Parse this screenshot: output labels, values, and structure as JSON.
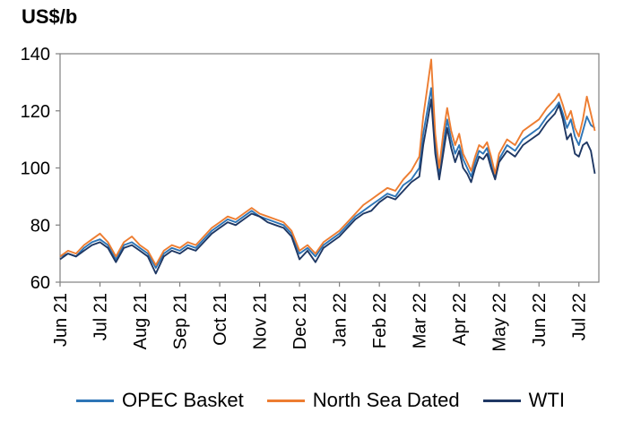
{
  "title": "US$/b",
  "axis": {
    "border_color": "#808080",
    "tick_color": "#808080",
    "label_color": "#000000"
  },
  "chart_data": {
    "type": "line",
    "title": "US$/b",
    "xlabel": "",
    "ylabel": "US$/b",
    "ylim": [
      60,
      140
    ],
    "yticks": [
      60,
      80,
      100,
      120,
      140
    ],
    "xlim": [
      0,
      13.5
    ],
    "x_unit": "months since Jun 2021",
    "xtick_positions": [
      0,
      1,
      2,
      3,
      4,
      5,
      6,
      7,
      8,
      9,
      10,
      11,
      12,
      13
    ],
    "xtick_labels": [
      "Jun 21",
      "Jul 21",
      "Aug 21",
      "Sep 21",
      "Oct 21",
      "Nov 21",
      "Dec 21",
      "Jan 22",
      "Feb 22",
      "Mar 22",
      "Apr 22",
      "May 22",
      "Jun 22",
      "Jul 22"
    ],
    "grid": false,
    "legend_position": "bottom",
    "x": [
      0.0,
      0.2,
      0.4,
      0.6,
      0.8,
      1.0,
      1.2,
      1.4,
      1.6,
      1.8,
      2.0,
      2.2,
      2.4,
      2.6,
      2.8,
      3.0,
      3.2,
      3.4,
      3.6,
      3.8,
      4.0,
      4.2,
      4.4,
      4.6,
      4.8,
      5.0,
      5.2,
      5.4,
      5.6,
      5.8,
      6.0,
      6.2,
      6.4,
      6.6,
      6.8,
      7.0,
      7.2,
      7.4,
      7.6,
      7.8,
      8.0,
      8.2,
      8.4,
      8.6,
      8.8,
      9.0,
      9.1,
      9.2,
      9.3,
      9.4,
      9.5,
      9.6,
      9.7,
      9.8,
      9.9,
      10.0,
      10.1,
      10.2,
      10.3,
      10.4,
      10.5,
      10.6,
      10.7,
      10.8,
      10.9,
      11.0,
      11.2,
      11.4,
      11.6,
      11.8,
      12.0,
      12.2,
      12.4,
      12.5,
      12.6,
      12.7,
      12.8,
      12.9,
      13.0,
      13.1,
      13.2,
      13.3,
      13.4
    ],
    "series": [
      {
        "name": "OPEC Basket",
        "color": "#2E75B6",
        "values": [
          69,
          70,
          69,
          72,
          74,
          75,
          73,
          68,
          73,
          74,
          72,
          70,
          65,
          70,
          72,
          71,
          73,
          72,
          75,
          78,
          80,
          82,
          81,
          83,
          85,
          83,
          82,
          81,
          80,
          77,
          70,
          72,
          69,
          73,
          75,
          77,
          80,
          83,
          85,
          87,
          89,
          91,
          90,
          94,
          96,
          100,
          112,
          120,
          128,
          108,
          98,
          108,
          117,
          110,
          105,
          108,
          103,
          100,
          97,
          102,
          106,
          105,
          107,
          102,
          97,
          103,
          108,
          106,
          110,
          112,
          114,
          118,
          121,
          123,
          119,
          114,
          117,
          111,
          108,
          113,
          118,
          115,
          114
        ]
      },
      {
        "name": "North Sea Dated",
        "color": "#ED7D31",
        "values": [
          69,
          71,
          70,
          73,
          75,
          77,
          74,
          69,
          74,
          76,
          73,
          71,
          66,
          71,
          73,
          72,
          74,
          73,
          76,
          79,
          81,
          83,
          82,
          84,
          86,
          84,
          83,
          82,
          81,
          78,
          71,
          73,
          70,
          74,
          76,
          78,
          81,
          84,
          87,
          89,
          91,
          93,
          92,
          96,
          99,
          104,
          118,
          128,
          138,
          112,
          100,
          112,
          121,
          113,
          108,
          112,
          105,
          102,
          99,
          104,
          108,
          107,
          109,
          104,
          98,
          105,
          110,
          108,
          113,
          115,
          117,
          121,
          124,
          126,
          122,
          117,
          120,
          114,
          111,
          117,
          125,
          119,
          113
        ]
      },
      {
        "name": "WTI",
        "color": "#1F3864",
        "values": [
          68,
          70,
          69,
          71,
          73,
          74,
          72,
          67,
          72,
          73,
          71,
          69,
          63,
          69,
          71,
          70,
          72,
          71,
          74,
          77,
          79,
          81,
          80,
          82,
          84,
          83,
          81,
          80,
          79,
          76,
          68,
          71,
          67,
          72,
          74,
          76,
          79,
          82,
          84,
          85,
          88,
          90,
          89,
          92,
          95,
          97,
          108,
          116,
          124,
          105,
          96,
          105,
          114,
          107,
          102,
          106,
          100,
          98,
          95,
          100,
          104,
          103,
          105,
          100,
          96,
          102,
          106,
          104,
          108,
          110,
          112,
          116,
          119,
          122,
          117,
          110,
          112,
          105,
          104,
          108,
          109,
          106,
          98
        ]
      }
    ]
  }
}
